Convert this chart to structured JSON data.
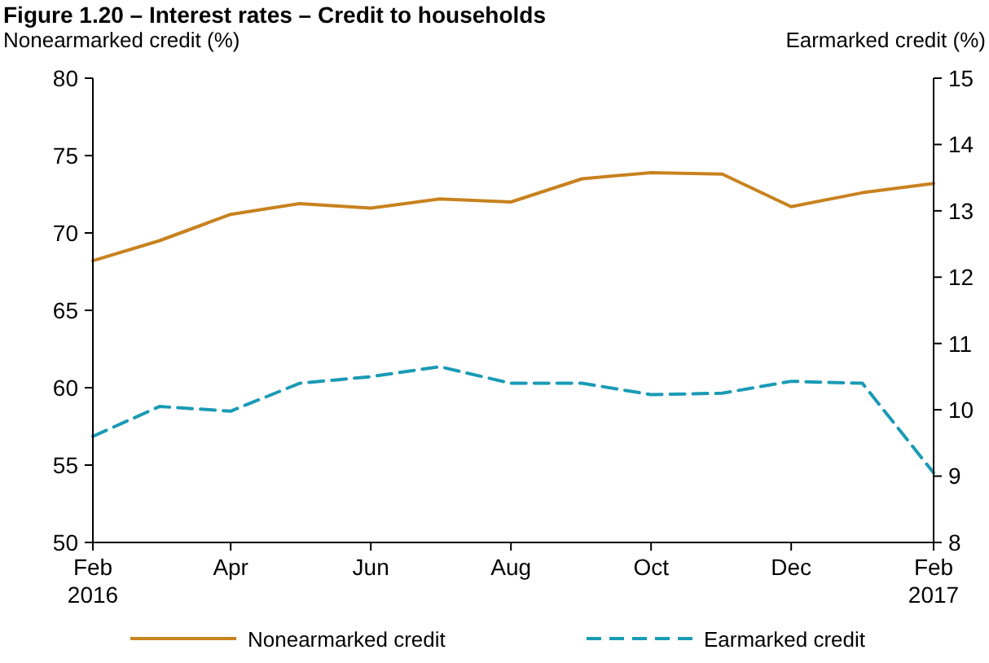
{
  "chart_data": {
    "type": "line",
    "title": "Figure 1.20 – Interest rates – Credit to households",
    "ylabel": "Nonearmarked credit (%)",
    "y2label": "Earmarked credit (%)",
    "x": [
      "2016-02",
      "2016-03",
      "2016-04",
      "2016-05",
      "2016-06",
      "2016-07",
      "2016-08",
      "2016-09",
      "2016-10",
      "2016-11",
      "2016-12",
      "2017-01",
      "2017-02"
    ],
    "xlim": [
      "2016-02",
      "2017-02"
    ],
    "xticks": [
      {
        "value": "2016-02",
        "label": "Feb\n2016"
      },
      {
        "value": "2016-04",
        "label": "Apr"
      },
      {
        "value": "2016-06",
        "label": "Jun"
      },
      {
        "value": "2016-08",
        "label": "Aug"
      },
      {
        "value": "2016-10",
        "label": "Oct"
      },
      {
        "value": "2016-12",
        "label": "Dec"
      },
      {
        "value": "2017-02",
        "label": "Feb\n2017"
      }
    ],
    "ylim": [
      50,
      80
    ],
    "yticks": [
      50,
      55,
      60,
      65,
      70,
      75,
      80
    ],
    "y2lim": [
      8,
      15
    ],
    "y2ticks": [
      8,
      9,
      10,
      11,
      12,
      13,
      14,
      15
    ],
    "series": [
      {
        "name": "Nonearmarked credit",
        "color": "#c8821e",
        "line_style": "solid",
        "values": [
          68.2,
          69.5,
          71.2,
          71.9,
          71.6,
          72.2,
          72.0,
          73.5,
          73.9,
          73.8,
          71.7,
          72.6,
          73.2
        ]
      },
      {
        "name": "Earmarked credit",
        "color": "#1a9bb5",
        "line_style": "dashed",
        "axis": "y2",
        "values": [
          9.6,
          10.05,
          9.98,
          10.4,
          10.5,
          10.65,
          10.4,
          10.4,
          10.23,
          10.25,
          10.43,
          10.4,
          9.05
        ]
      }
    ],
    "grid": false,
    "legend": "bottom",
    "marker": "none"
  }
}
